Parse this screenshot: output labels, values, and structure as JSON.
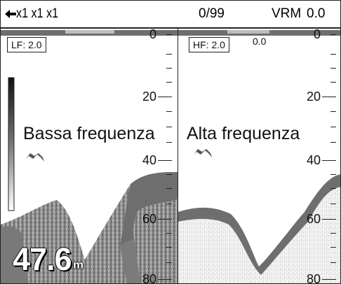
{
  "header": {
    "range_text": "x1 x1 x1",
    "counter": "0/99",
    "vrm_label": "VRM",
    "vrm_value": "0.0",
    "arrow_icon": "left-arrow-icon"
  },
  "lf_panel": {
    "freq_box": "LF: 2.0",
    "title": "Bassa frequenza",
    "scale": [
      "0",
      "20",
      "40",
      "60",
      "80"
    ]
  },
  "hf_panel": {
    "freq_box": "HF: 2.0",
    "offset": "0.0",
    "title": "Alta frequenza",
    "scale": [
      "0",
      "20",
      "40",
      "60",
      "80"
    ]
  },
  "depth": {
    "value": "47.6",
    "unit": "m"
  },
  "colors": {
    "bottom_echo": "#6e6e6e",
    "noise": "#9a9a9a",
    "frame": "#222222"
  }
}
